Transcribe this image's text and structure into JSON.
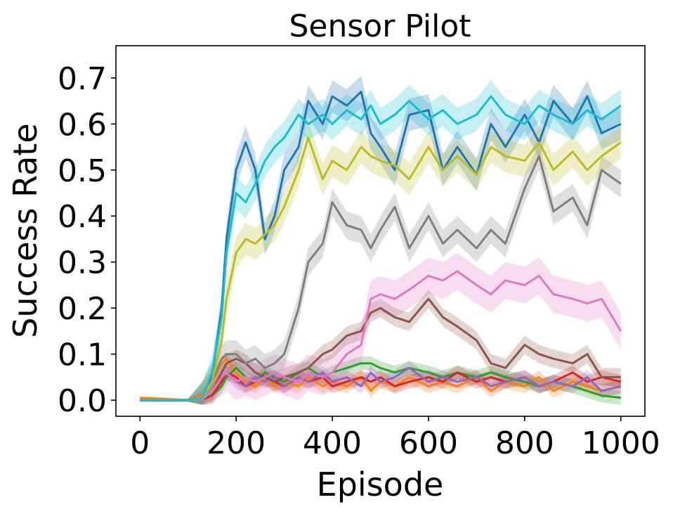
{
  "chart_data": {
    "type": "line",
    "title": "Sensor Pilot",
    "xlabel": "Episode",
    "ylabel": "Success Rate",
    "xlim": [
      -50,
      1050
    ],
    "ylim": [
      -0.035,
      0.77
    ],
    "xticks": [
      0,
      200,
      400,
      600,
      800,
      1000
    ],
    "xtick_labels": [
      "0",
      "200",
      "400",
      "600",
      "800",
      "1000"
    ],
    "yticks": [
      0.0,
      0.1,
      0.2,
      0.3,
      0.4,
      0.5,
      0.6,
      0.7
    ],
    "ytick_labels": [
      "0.0",
      "0.1",
      "0.2",
      "0.3",
      "0.4",
      "0.5",
      "0.6",
      "0.7"
    ],
    "grid": false,
    "legend": "none",
    "shaded_bands": true,
    "x": [
      0,
      50,
      100,
      130,
      150,
      170,
      180,
      200,
      220,
      240,
      260,
      280,
      300,
      330,
      350,
      380,
      400,
      430,
      460,
      480,
      500,
      530,
      560,
      600,
      630,
      660,
      700,
      730,
      760,
      800,
      830,
      860,
      900,
      930,
      960,
      1000
    ],
    "series": [
      {
        "color": "#1f77b4",
        "band": 0.035,
        "values": [
          0,
          0,
          0,
          0.005,
          0.05,
          0.2,
          0.35,
          0.5,
          0.56,
          0.5,
          0.35,
          0.4,
          0.5,
          0.55,
          0.65,
          0.6,
          0.66,
          0.64,
          0.67,
          0.58,
          0.55,
          0.5,
          0.62,
          0.63,
          0.5,
          0.55,
          0.49,
          0.6,
          0.55,
          0.62,
          0.56,
          0.65,
          0.6,
          0.66,
          0.58,
          0.6
        ]
      },
      {
        "color": "#ff7f0e",
        "band": 0.015,
        "values": [
          0.005,
          0.003,
          0,
          0.01,
          0.04,
          0.08,
          0.09,
          0.06,
          0.04,
          0.03,
          0.05,
          0.03,
          0.04,
          0.03,
          0.05,
          0.03,
          0.04,
          0.03,
          0.05,
          0.02,
          0.04,
          0.03,
          0.05,
          0.03,
          0.04,
          0.03,
          0.05,
          0.02,
          0.04,
          0.03,
          0.05,
          0.02,
          0.04,
          0.03,
          0.02,
          0.03
        ]
      },
      {
        "color": "#2ca02c",
        "band": 0.015,
        "values": [
          0,
          0,
          0,
          0.002,
          0.01,
          0.03,
          0.05,
          0.07,
          0.05,
          0.04,
          0.06,
          0.05,
          0.04,
          0.06,
          0.07,
          0.05,
          0.06,
          0.07,
          0.08,
          0.08,
          0.07,
          0.06,
          0.07,
          0.06,
          0.05,
          0.06,
          0.05,
          0.06,
          0.05,
          0.04,
          0.03,
          0.04,
          0.03,
          0.02,
          0.01,
          0.005
        ]
      },
      {
        "color": "#d62728",
        "band": 0.015,
        "values": [
          0,
          0,
          0,
          0.002,
          0.01,
          0.04,
          0.06,
          0.05,
          0.03,
          0.04,
          0.05,
          0.04,
          0.03,
          0.05,
          0.04,
          0.05,
          0.03,
          0.04,
          0.05,
          0.04,
          0.05,
          0.03,
          0.04,
          0.05,
          0.04,
          0.06,
          0.04,
          0.05,
          0.04,
          0.05,
          0.03,
          0.04,
          0.06,
          0.04,
          0.05,
          0.04
        ]
      },
      {
        "color": "#9467bd",
        "band": 0.015,
        "values": [
          0,
          0,
          0,
          0.002,
          0.02,
          0.05,
          0.06,
          0.04,
          0.03,
          0.05,
          0.04,
          0.05,
          0.03,
          0.05,
          0.04,
          0.06,
          0.04,
          0.05,
          0.03,
          0.06,
          0.04,
          0.05,
          0.07,
          0.04,
          0.05,
          0.04,
          0.05,
          0.03,
          0.04,
          0.05,
          0.03,
          0.04,
          0.03,
          0.05,
          0.02,
          0.03
        ]
      },
      {
        "color": "#8c564b",
        "band": 0.02,
        "values": [
          0,
          0,
          0,
          0.002,
          0.02,
          0.06,
          0.08,
          0.09,
          0.08,
          0.06,
          0.05,
          0.04,
          0.05,
          0.06,
          0.07,
          0.1,
          0.11,
          0.14,
          0.15,
          0.19,
          0.2,
          0.18,
          0.17,
          0.22,
          0.18,
          0.16,
          0.13,
          0.08,
          0.07,
          0.12,
          0.1,
          0.09,
          0.08,
          0.1,
          0.05,
          0.05
        ]
      },
      {
        "color": "#e377c2",
        "band": 0.04,
        "values": [
          0,
          0,
          0,
          0.002,
          0.02,
          0.05,
          0.06,
          0.04,
          0.05,
          0.04,
          0.05,
          0.06,
          0.05,
          0.04,
          0.06,
          0.05,
          0.06,
          0.1,
          0.12,
          0.22,
          0.23,
          0.22,
          0.24,
          0.27,
          0.26,
          0.28,
          0.25,
          0.23,
          0.26,
          0.25,
          0.27,
          0.23,
          0.22,
          0.21,
          0.22,
          0.15
        ]
      },
      {
        "color": "#7f7f7f",
        "band": 0.03,
        "values": [
          0,
          0,
          0,
          0.005,
          0.04,
          0.09,
          0.1,
          0.1,
          0.08,
          0.09,
          0.07,
          0.08,
          0.1,
          0.2,
          0.3,
          0.34,
          0.43,
          0.38,
          0.37,
          0.33,
          0.37,
          0.42,
          0.33,
          0.4,
          0.34,
          0.37,
          0.33,
          0.37,
          0.34,
          0.46,
          0.53,
          0.41,
          0.44,
          0.38,
          0.5,
          0.47
        ]
      },
      {
        "color": "#bcbd22",
        "band": 0.035,
        "values": [
          0,
          0,
          0,
          0.005,
          0.04,
          0.13,
          0.22,
          0.32,
          0.35,
          0.34,
          0.36,
          0.38,
          0.42,
          0.5,
          0.57,
          0.48,
          0.52,
          0.5,
          0.55,
          0.53,
          0.52,
          0.51,
          0.48,
          0.55,
          0.5,
          0.53,
          0.49,
          0.55,
          0.53,
          0.52,
          0.56,
          0.5,
          0.54,
          0.5,
          0.53,
          0.56
        ]
      },
      {
        "color": "#17becf",
        "band": 0.035,
        "values": [
          0,
          0,
          0,
          0.005,
          0.06,
          0.18,
          0.32,
          0.45,
          0.43,
          0.47,
          0.52,
          0.55,
          0.57,
          0.62,
          0.6,
          0.62,
          0.6,
          0.63,
          0.61,
          0.64,
          0.6,
          0.62,
          0.65,
          0.61,
          0.63,
          0.6,
          0.62,
          0.66,
          0.62,
          0.6,
          0.64,
          0.62,
          0.6,
          0.63,
          0.61,
          0.64
        ]
      }
    ]
  }
}
